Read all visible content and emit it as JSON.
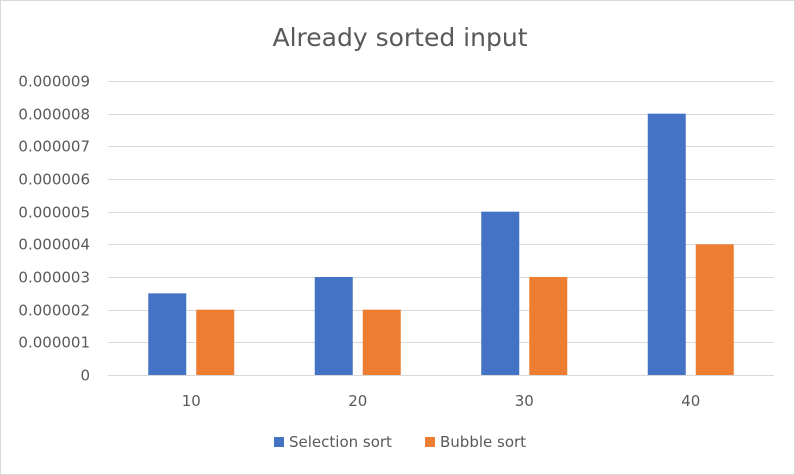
{
  "chart_data": {
    "type": "bar",
    "title": "Already sorted input",
    "xlabel": "",
    "ylabel": "",
    "categories": [
      "10",
      "20",
      "30",
      "40"
    ],
    "series": [
      {
        "name": "Selection sort",
        "color": "#4472c4",
        "values": [
          2.5e-06,
          3e-06,
          5e-06,
          8e-06
        ]
      },
      {
        "name": "Bubble sort",
        "color": "#ed7d31",
        "values": [
          2e-06,
          2e-06,
          3e-06,
          4e-06
        ]
      }
    ],
    "ylim": [
      0,
      9e-06
    ],
    "yticks": [
      0,
      1e-06,
      2e-06,
      3e-06,
      4e-06,
      5e-06,
      6e-06,
      7e-06,
      8e-06,
      9e-06
    ],
    "ytick_labels": [
      "0",
      "0.000001",
      "0.000002",
      "0.000003",
      "0.000004",
      "0.000005",
      "0.000006",
      "0.000007",
      "0.000008",
      "0.000009"
    ],
    "grid": true,
    "legend": "bottom",
    "colors": {
      "gridline": "#d9d9d9",
      "text": "#595959",
      "border": "#d9d9d9"
    }
  }
}
